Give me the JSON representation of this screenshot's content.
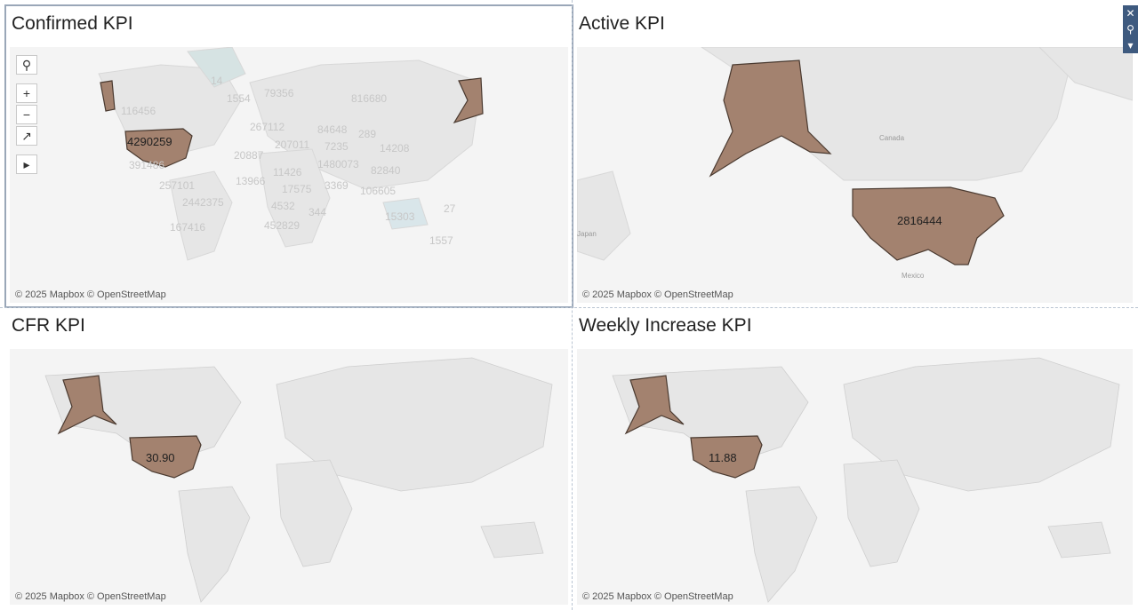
{
  "panels": {
    "confirmed": {
      "title": "Confirmed KPI",
      "us_value": "4290259",
      "labels": [
        "14",
        "1554",
        "79356",
        "816680",
        "116456",
        "267112",
        "84648",
        "289",
        "207011",
        "7235",
        "14208",
        "20887",
        "1480073",
        "82840",
        "391486",
        "11426",
        "257101",
        "13966",
        "17575",
        "3369",
        "106605",
        "2442375",
        "15303",
        "27",
        "4532",
        "344",
        "167416",
        "452829",
        "1557"
      ]
    },
    "active": {
      "title": "Active KPI",
      "us_value": "2816444",
      "place_labels": [
        "Canada",
        "Japan",
        "Mexico"
      ]
    },
    "cfr": {
      "title": "CFR KPI",
      "us_value": "30.90"
    },
    "weekly": {
      "title": "Weekly Increase KPI",
      "us_value": "11.88"
    }
  },
  "attribution": "© 2025 Mapbox © OpenStreetMap",
  "toolbar": {
    "search_icon": "search-icon",
    "zoom_in": "+",
    "zoom_out": "−",
    "reset_icon": "pin-reset-icon",
    "expand_icon": "play-icon"
  },
  "corner_controls": {
    "close": "✕",
    "pin": "⚲",
    "menu": "▾"
  },
  "colors": {
    "highlight": "#a3826f",
    "map_bg": "#f4f4f4",
    "land": "#e8e8e8",
    "border": "#b9c4d2"
  }
}
